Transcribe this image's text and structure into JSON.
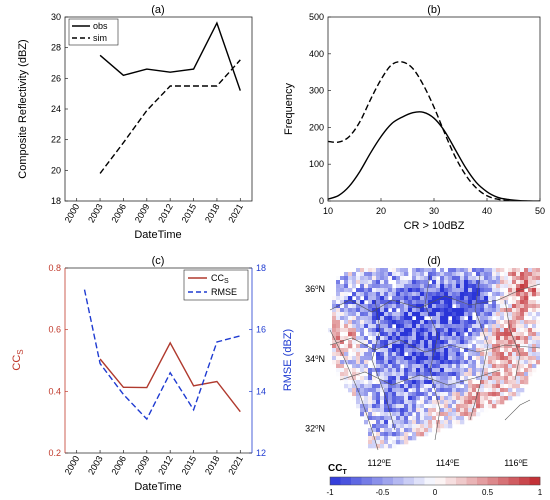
{
  "chart_data": [
    {
      "panel": "(a)",
      "type": "line",
      "x": [
        2003,
        2006,
        2009,
        2012,
        2015,
        2018,
        2021
      ],
      "xticks": [
        2000,
        2003,
        2006,
        2009,
        2012,
        2015,
        2018,
        2021
      ],
      "yticks": [
        18,
        20,
        22,
        24,
        26,
        28,
        30
      ],
      "xlim": [
        1998.5,
        2022.5
      ],
      "ylim": [
        18,
        30
      ],
      "xlabel": "DateTime",
      "ylabel": "Composite Reflectivity (dBZ)",
      "legend": "top-left",
      "series": [
        {
          "name": "obs",
          "style": "solid",
          "values": [
            27.5,
            26.2,
            26.6,
            26.4,
            26.6,
            29.6,
            25.2
          ]
        },
        {
          "name": "sim",
          "style": "dashed",
          "values": [
            19.8,
            21.8,
            23.9,
            25.5,
            25.5,
            25.5,
            27.2
          ]
        }
      ]
    },
    {
      "panel": "(b)",
      "type": "line",
      "xticks": [
        10,
        20,
        30,
        40,
        50
      ],
      "yticks": [
        0,
        100,
        200,
        300,
        400,
        500
      ],
      "xlim": [
        10,
        50
      ],
      "ylim": [
        0,
        500
      ],
      "xlabel": "CR > 10dBZ",
      "ylabel": "Frequency",
      "series": [
        {
          "style": "solid",
          "x": [
            10,
            12,
            14,
            16,
            18,
            20,
            22,
            24,
            26,
            28,
            30,
            32,
            34,
            36,
            38,
            40,
            42,
            44,
            46,
            48,
            50
          ],
          "values": [
            5,
            15,
            40,
            80,
            130,
            175,
            210,
            228,
            240,
            241,
            225,
            190,
            140,
            90,
            50,
            25,
            10,
            4,
            1,
            0,
            0
          ]
        },
        {
          "style": "dashed",
          "x": [
            10,
            12,
            14,
            16,
            18,
            20,
            22,
            24,
            26,
            28,
            30,
            32,
            34,
            36,
            38,
            40,
            42,
            44,
            46,
            48
          ],
          "values": [
            162,
            160,
            175,
            215,
            275,
            330,
            370,
            378,
            360,
            315,
            255,
            185,
            120,
            70,
            35,
            14,
            5,
            1,
            0,
            0
          ]
        }
      ]
    },
    {
      "panel": "(c)",
      "type": "line",
      "xticks": [
        2000,
        2003,
        2006,
        2009,
        2012,
        2015,
        2018,
        2021
      ],
      "xlim": [
        1998.5,
        2022.5
      ],
      "xlabel": "DateTime",
      "left_axis": {
        "label": "CC",
        "label_sub": "S",
        "ylim": [
          0.2,
          0.8
        ],
        "yticks": [
          0.2,
          0.4,
          0.6,
          0.8
        ],
        "color": "#c0392b"
      },
      "right_axis": {
        "label": "RMSE (dBZ)",
        "ylim": [
          12,
          18
        ],
        "yticks": [
          12,
          14,
          16,
          18
        ],
        "color": "#1f3bd1"
      },
      "legend": "top-right",
      "series": [
        {
          "name": "CC",
          "name_sub": "S",
          "axis": "left",
          "style": "solid",
          "color": "#b03a2e",
          "x": [
            2003,
            2006,
            2009,
            2012,
            2015,
            2018,
            2021
          ],
          "values": [
            0.505,
            0.413,
            0.412,
            0.557,
            0.418,
            0.432,
            0.334
          ]
        },
        {
          "name": "RMSE",
          "axis": "right",
          "style": "dashed",
          "color": "#1f3bd1",
          "x": [
            2001,
            2003,
            2006,
            2009,
            2012,
            2015,
            2018,
            2021
          ],
          "values": [
            17.3,
            14.9,
            13.9,
            13.1,
            14.6,
            13.4,
            15.6,
            15.8
          ]
        }
      ]
    },
    {
      "panel": "(d)",
      "type": "heatmap",
      "x_ticks": [
        {
          "deg": "112",
          "dir": "E"
        },
        {
          "deg": "114",
          "dir": "E"
        },
        {
          "deg": "116",
          "dir": "E"
        }
      ],
      "y_ticks": [
        {
          "deg": "36",
          "dir": "N"
        },
        {
          "deg": "34",
          "dir": "N"
        },
        {
          "deg": "32",
          "dir": "N"
        }
      ],
      "xlim": [
        110.5,
        116.7
      ],
      "ylim": [
        31.3,
        36.6
      ],
      "colorbar": {
        "label": "CC",
        "label_sub": "T",
        "range": [
          -1,
          1
        ],
        "ticks": [
          "-1",
          "-0.5",
          "0",
          "0.5",
          "1"
        ]
      },
      "colors": {
        "negative": "#2a35d8",
        "neutral": "#ffffff",
        "positive": "#c0262c"
      }
    }
  ],
  "unit_sup": "o"
}
